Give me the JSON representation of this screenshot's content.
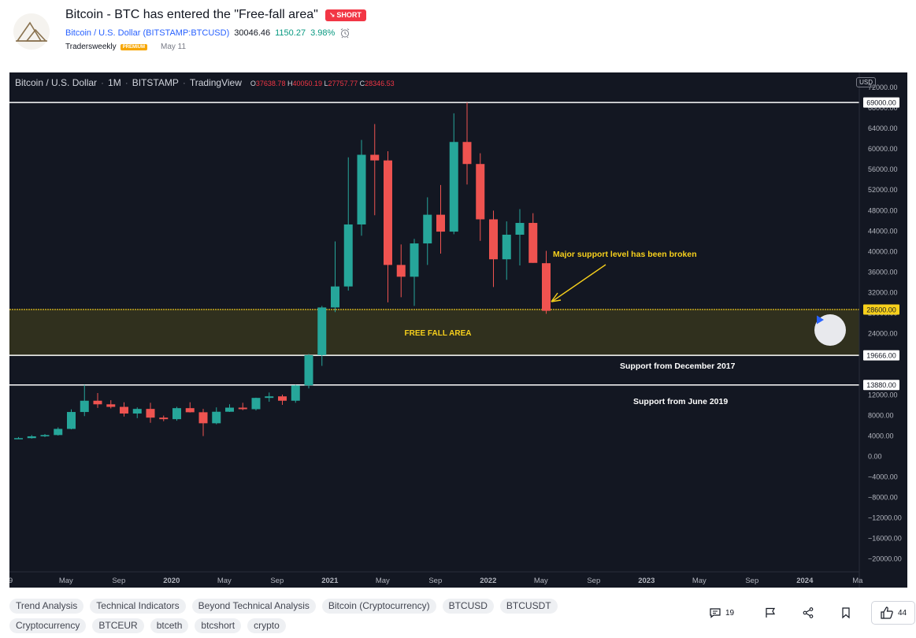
{
  "header": {
    "title": "Bitcoin - BTC has entered the \"Free-fall area\"",
    "badge": "SHORT",
    "badge_arrow": "↘",
    "symbol_name": "Bitcoin / U.S. Dollar",
    "symbol_code": "(BITSTAMP:BTCUSD)",
    "price": "30046.46",
    "change": "1150.27",
    "change_pct": "3.98%",
    "author": "Tradersweekly",
    "premium": "PREMIUM",
    "date": "May 11",
    "icons": [
      "logo-icon",
      "alarm-clock-icon"
    ]
  },
  "chart": {
    "legend": {
      "symbol": "Bitcoin / U.S. Dollar",
      "interval": "1M",
      "exchange": "BITSTAMP",
      "source": "TradingView",
      "sep": "·",
      "o_label": "O",
      "o": "37638.78",
      "h_label": "H",
      "h": "40050.19",
      "l_label": "L",
      "l": "27757.77",
      "c_label": "C",
      "c": "28346.53"
    },
    "currency": "USD",
    "play_icon": "play-icon"
  },
  "chart_data": {
    "type": "candlestick",
    "ylim": [
      -23000,
      74000
    ],
    "yticks": [
      72000,
      68000,
      64000,
      60000,
      56000,
      52000,
      48000,
      44000,
      40000,
      36000,
      32000,
      28000,
      24000,
      20000,
      12000,
      8000,
      4000,
      0,
      -4000,
      -8000,
      -12000,
      -16000,
      -20000
    ],
    "ytick_labels": [
      "72000.00",
      "68000.00",
      "64000.00",
      "60000.00",
      "56000.00",
      "52000.00",
      "48000.00",
      "44000.00",
      "40000.00",
      "36000.00",
      "32000.00",
      "28000.00",
      "24000.00",
      "20000.00",
      "12000.00",
      "8000.00",
      "4000.00",
      "0.00",
      "−4000.00",
      "−8000.00",
      "−12000.00",
      "−16000.00",
      "−20000.00"
    ],
    "xticks": [
      {
        "label": "9",
        "m": -0.6
      },
      {
        "label": "May",
        "m": 3.6
      },
      {
        "label": "Sep",
        "m": 7.6
      },
      {
        "label": "2020",
        "m": 11.6
      },
      {
        "label": "May",
        "m": 15.6
      },
      {
        "label": "Sep",
        "m": 19.6
      },
      {
        "label": "2021",
        "m": 23.6
      },
      {
        "label": "May",
        "m": 27.6
      },
      {
        "label": "Sep",
        "m": 31.6
      },
      {
        "label": "2022",
        "m": 35.6
      },
      {
        "label": "May",
        "m": 39.6
      },
      {
        "label": "Sep",
        "m": 43.6
      },
      {
        "label": "2023",
        "m": 47.6
      },
      {
        "label": "May",
        "m": 51.6
      },
      {
        "label": "Sep",
        "m": 55.6
      },
      {
        "label": "2024",
        "m": 59.6
      },
      {
        "label": "Ma",
        "m": 63.6
      }
    ],
    "candles": [
      {
        "o": 3400,
        "h": 3700,
        "l": 3300,
        "c": 3500
      },
      {
        "o": 3500,
        "h": 4100,
        "l": 3400,
        "c": 3850
      },
      {
        "o": 3850,
        "h": 4300,
        "l": 3700,
        "c": 4100
      },
      {
        "o": 4100,
        "h": 5600,
        "l": 4000,
        "c": 5300
      },
      {
        "o": 5300,
        "h": 9100,
        "l": 5200,
        "c": 8600
      },
      {
        "o": 8600,
        "h": 13880,
        "l": 7800,
        "c": 10800
      },
      {
        "o": 10800,
        "h": 12300,
        "l": 9400,
        "c": 10100
      },
      {
        "o": 10100,
        "h": 10900,
        "l": 9300,
        "c": 9600
      },
      {
        "o": 9600,
        "h": 10500,
        "l": 7700,
        "c": 8300
      },
      {
        "o": 8300,
        "h": 9500,
        "l": 7400,
        "c": 9200
      },
      {
        "o": 9200,
        "h": 10400,
        "l": 6500,
        "c": 7500
      },
      {
        "o": 7500,
        "h": 7900,
        "l": 6800,
        "c": 7200
      },
      {
        "o": 7200,
        "h": 9600,
        "l": 6900,
        "c": 9350
      },
      {
        "o": 9350,
        "h": 10500,
        "l": 8500,
        "c": 8550
      },
      {
        "o": 8550,
        "h": 9200,
        "l": 3900,
        "c": 6400
      },
      {
        "o": 6400,
        "h": 9500,
        "l": 6200,
        "c": 8650
      },
      {
        "o": 8650,
        "h": 10100,
        "l": 8600,
        "c": 9450
      },
      {
        "o": 9450,
        "h": 10400,
        "l": 8950,
        "c": 9150
      },
      {
        "o": 9150,
        "h": 11400,
        "l": 8900,
        "c": 11350
      },
      {
        "o": 11350,
        "h": 12400,
        "l": 10600,
        "c": 11650
      },
      {
        "o": 11650,
        "h": 12000,
        "l": 10000,
        "c": 10800
      },
      {
        "o": 10800,
        "h": 13900,
        "l": 10400,
        "c": 13800
      },
      {
        "o": 13800,
        "h": 19900,
        "l": 13200,
        "c": 19700
      },
      {
        "o": 19700,
        "h": 29300,
        "l": 17600,
        "c": 29000
      },
      {
        "o": 29000,
        "h": 41900,
        "l": 28100,
        "c": 33100
      },
      {
        "o": 33100,
        "h": 58300,
        "l": 32300,
        "c": 45200
      },
      {
        "o": 45200,
        "h": 61700,
        "l": 43000,
        "c": 58800
      },
      {
        "o": 58800,
        "h": 64800,
        "l": 47000,
        "c": 57700
      },
      {
        "o": 57700,
        "h": 59500,
        "l": 30000,
        "c": 37300
      },
      {
        "o": 37300,
        "h": 41300,
        "l": 31000,
        "c": 35000
      },
      {
        "o": 35000,
        "h": 42400,
        "l": 29300,
        "c": 41500
      },
      {
        "o": 41500,
        "h": 50500,
        "l": 37300,
        "c": 47100
      },
      {
        "o": 47100,
        "h": 52900,
        "l": 39500,
        "c": 43800
      },
      {
        "o": 43800,
        "h": 66900,
        "l": 43300,
        "c": 61300
      },
      {
        "o": 61300,
        "h": 69000,
        "l": 53000,
        "c": 57000
      },
      {
        "o": 57000,
        "h": 59100,
        "l": 42000,
        "c": 46200
      },
      {
        "o": 46200,
        "h": 47900,
        "l": 33000,
        "c": 38400
      },
      {
        "o": 38400,
        "h": 45800,
        "l": 34400,
        "c": 43200
      },
      {
        "o": 43200,
        "h": 48200,
        "l": 37200,
        "c": 45500
      },
      {
        "o": 45500,
        "h": 47400,
        "l": 37700,
        "c": 37700
      },
      {
        "o": 37638.78,
        "h": 40050.19,
        "l": 27757.77,
        "c": 28346.53
      }
    ],
    "levels": [
      {
        "value": 69000,
        "label": "69000.00",
        "color": "#ffffff"
      },
      {
        "value": 28600,
        "label": "28600.00",
        "color": "#f7d01c"
      },
      {
        "value": 19666,
        "label": "19666.00",
        "color": "#ffffff"
      },
      {
        "value": 13880,
        "label": "13880.00",
        "color": "#ffffff"
      }
    ],
    "zone": {
      "from": 19666,
      "to": 28600,
      "label": "FREE FALL AREA"
    },
    "annotations": [
      {
        "text": "Major support level has been broken",
        "color": "#f7d01c"
      },
      {
        "text": "Support from December 2017",
        "color": "#ffffff"
      },
      {
        "text": "Support from June 2019",
        "color": "#ffffff"
      }
    ],
    "colors": {
      "up": "#26a69a",
      "down": "#ef5350",
      "bg": "#131722",
      "axis_text": "#b2b5be",
      "zone": "#3b3a1e"
    }
  },
  "tags": {
    "row1": [
      "Trend Analysis",
      "Technical Indicators",
      "Beyond Technical Analysis",
      "Bitcoin (Cryptocurrency)",
      "BTCUSD",
      "BTCUSDT"
    ],
    "row2": [
      "Cryptocurrency",
      "BTCEUR",
      "btceth",
      "btcshort",
      "crypto"
    ]
  },
  "actions": {
    "comments_count": "19",
    "likes_count": "44",
    "icons": [
      "comment-icon",
      "flag-icon",
      "share-icon",
      "bookmark-icon",
      "thumbs-up-icon"
    ]
  }
}
